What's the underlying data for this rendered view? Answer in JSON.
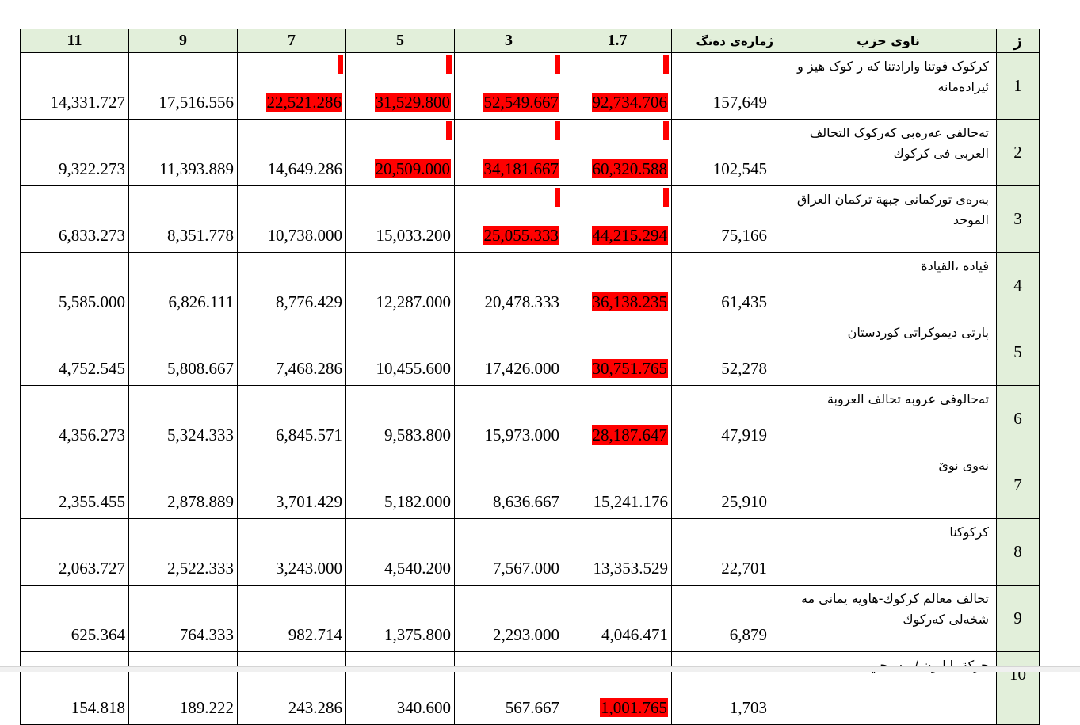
{
  "columns": [
    "11",
    "9",
    "7",
    "5",
    "3",
    "1.7",
    "ژمارەی دەنگ",
    "ناوی حزب",
    "ز"
  ],
  "rows": [
    {
      "idx": "1",
      "name": "کرکوک قوتنا وارادتنا کە ر کوک هیز و ئیرادەمانە",
      "votes": "157,649",
      "values": [
        "14,331.727",
        "17,516.556",
        "22,521.286",
        "31,529.800",
        "52,549.667",
        "92,734.706"
      ],
      "highlighted": [
        false,
        false,
        true,
        true,
        true,
        true
      ],
      "flagged": [
        false,
        false,
        true,
        true,
        true,
        true
      ]
    },
    {
      "idx": "2",
      "name": "تەحالفی عەرەبی کەرکوک التحالف العربی فی کرکوك",
      "votes": "102,545",
      "values": [
        "9,322.273",
        "11,393.889",
        "14,649.286",
        "20,509.000",
        "34,181.667",
        "60,320.588"
      ],
      "highlighted": [
        false,
        false,
        false,
        true,
        true,
        true
      ],
      "flagged": [
        false,
        false,
        false,
        true,
        true,
        true
      ]
    },
    {
      "idx": "3",
      "name": "بەرەی تورکمانی جبهة ترکمان العراق الموحد",
      "votes": "75,166",
      "values": [
        "6,833.273",
        "8,351.778",
        "10,738.000",
        "15,033.200",
        "25,055.333",
        "44,215.294"
      ],
      "highlighted": [
        false,
        false,
        false,
        false,
        true,
        true
      ],
      "flagged": [
        false,
        false,
        false,
        false,
        true,
        true
      ]
    },
    {
      "idx": "4",
      "name": "قیاده ،القیادة",
      "votes": "61,435",
      "values": [
        "5,585.000",
        "6,826.111",
        "8,776.429",
        "12,287.000",
        "20,478.333",
        "36,138.235"
      ],
      "highlighted": [
        false,
        false,
        false,
        false,
        false,
        true
      ],
      "flagged": [
        false,
        false,
        false,
        false,
        false,
        false
      ]
    },
    {
      "idx": "5",
      "name": "پارتی دیموکراتی کوردستان",
      "votes": "52,278",
      "values": [
        "4,752.545",
        "5,808.667",
        "7,468.286",
        "10,455.600",
        "17,426.000",
        "30,751.765"
      ],
      "highlighted": [
        false,
        false,
        false,
        false,
        false,
        true
      ],
      "flagged": [
        false,
        false,
        false,
        false,
        false,
        false
      ]
    },
    {
      "idx": "6",
      "name": "تەحالوفی عروبه تحالف العروبة",
      "votes": "47,919",
      "values": [
        "4,356.273",
        "5,324.333",
        "6,845.571",
        "9,583.800",
        "15,973.000",
        "28,187.647"
      ],
      "highlighted": [
        false,
        false,
        false,
        false,
        false,
        true
      ],
      "flagged": [
        false,
        false,
        false,
        false,
        false,
        false
      ]
    },
    {
      "idx": "7",
      "name": "نەوی نوێ",
      "votes": "25,910",
      "values": [
        "2,355.455",
        "2,878.889",
        "3,701.429",
        "5,182.000",
        "8,636.667",
        "15,241.176"
      ],
      "highlighted": [
        false,
        false,
        false,
        false,
        false,
        false
      ],
      "flagged": [
        false,
        false,
        false,
        false,
        false,
        false
      ]
    },
    {
      "idx": "8",
      "name": "کرکوکنا",
      "votes": "22,701",
      "values": [
        "2,063.727",
        "2,522.333",
        "3,243.000",
        "4,540.200",
        "7,567.000",
        "13,353.529"
      ],
      "highlighted": [
        false,
        false,
        false,
        false,
        false,
        false
      ],
      "flagged": [
        false,
        false,
        false,
        false,
        false,
        false
      ]
    },
    {
      "idx": "9",
      "name": "تحالف معالم کرکوك-هاویه یمانی مه شخەلی کەرکوك",
      "votes": "6,879",
      "values": [
        "625.364",
        "764.333",
        "982.714",
        "1,375.800",
        "2,293.000",
        "4,046.471"
      ],
      "highlighted": [
        false,
        false,
        false,
        false,
        false,
        false
      ],
      "flagged": [
        false,
        false,
        false,
        false,
        false,
        false
      ]
    },
    {
      "idx": "10",
      "name": "حرکة بابلیون / مسیحي",
      "votes": "1,703",
      "values": [
        "154.818",
        "189.222",
        "243.286",
        "340.600",
        "567.667",
        "1,001.765"
      ],
      "highlighted": [
        false,
        false,
        false,
        false,
        false,
        true
      ],
      "flagged": [
        false,
        false,
        false,
        false,
        false,
        false
      ]
    }
  ],
  "colors": {
    "header_bg": "#e2efda",
    "highlight": "#ff0000"
  }
}
